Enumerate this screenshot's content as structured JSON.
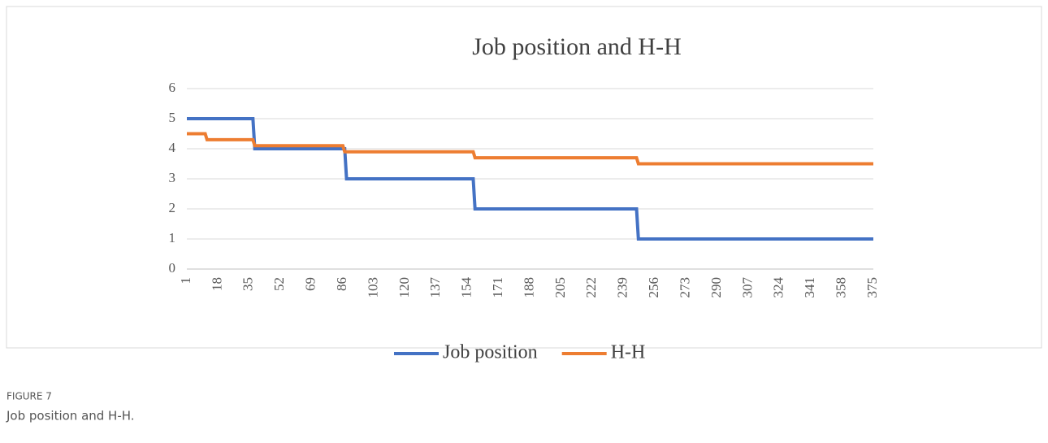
{
  "chart_data": {
    "type": "line",
    "title": "Job position and H-H",
    "series": [
      {
        "name": "Job position",
        "color": "#4472c4",
        "x": [
          1,
          37,
          38,
          87,
          88,
          157,
          158,
          246,
          247,
          375
        ],
        "values": [
          5,
          5,
          4,
          4,
          3,
          3,
          2,
          2,
          1,
          1
        ]
      },
      {
        "name": "H-H",
        "color": "#ed7d31",
        "x": [
          1,
          11,
          12,
          37,
          38,
          86,
          87,
          157,
          158,
          246,
          247,
          375
        ],
        "values": [
          4.5,
          4.5,
          4.3,
          4.3,
          4.1,
          4.1,
          3.9,
          3.9,
          3.7,
          3.7,
          3.5,
          3.5
        ]
      }
    ],
    "xlim": [
      1,
      375
    ],
    "xticks": [
      1,
      18,
      35,
      52,
      69,
      86,
      103,
      120,
      137,
      154,
      171,
      188,
      205,
      222,
      239,
      256,
      273,
      290,
      307,
      324,
      341,
      358,
      375
    ],
    "ylim": [
      0,
      6
    ],
    "yticks": [
      0,
      1,
      2,
      3,
      4,
      5,
      6
    ],
    "grid": true,
    "legend": "bottom"
  },
  "caption": {
    "label": "FIGURE 7",
    "text": "Job position and H-H."
  }
}
